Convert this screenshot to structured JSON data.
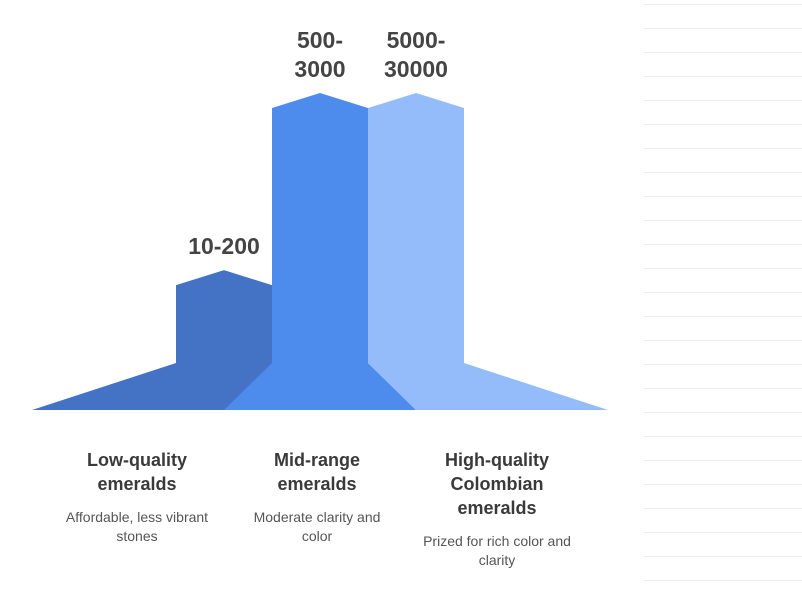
{
  "chart_data": {
    "type": "area",
    "categories": [
      "Low-quality emeralds",
      "Mid-range emeralds",
      "High-quality Colombian emeralds"
    ],
    "value_labels": [
      "10-200",
      "500-\n3000",
      "5000-\n30000"
    ],
    "relative_heights": [
      0.3,
      0.68,
      0.68
    ],
    "series": [
      {
        "label": "Low-quality emeralds",
        "title_lines": [
          "Low-quality",
          "emeralds"
        ],
        "description_lines": [
          "Affordable, less vibrant",
          "stones"
        ],
        "color": "#4472C4"
      },
      {
        "label": "Mid-range emeralds",
        "title_lines": [
          "Mid-range",
          "emeralds"
        ],
        "description_lines": [
          "Moderate clarity and",
          "color"
        ],
        "color": "#4D8CED"
      },
      {
        "label": "High-quality Colombian emeralds",
        "title_lines": [
          "High-quality",
          "Colombian",
          "emeralds"
        ],
        "description_lines": [
          "Prized for rich color and",
          "clarity"
        ],
        "color": "#94BBFA"
      }
    ]
  }
}
